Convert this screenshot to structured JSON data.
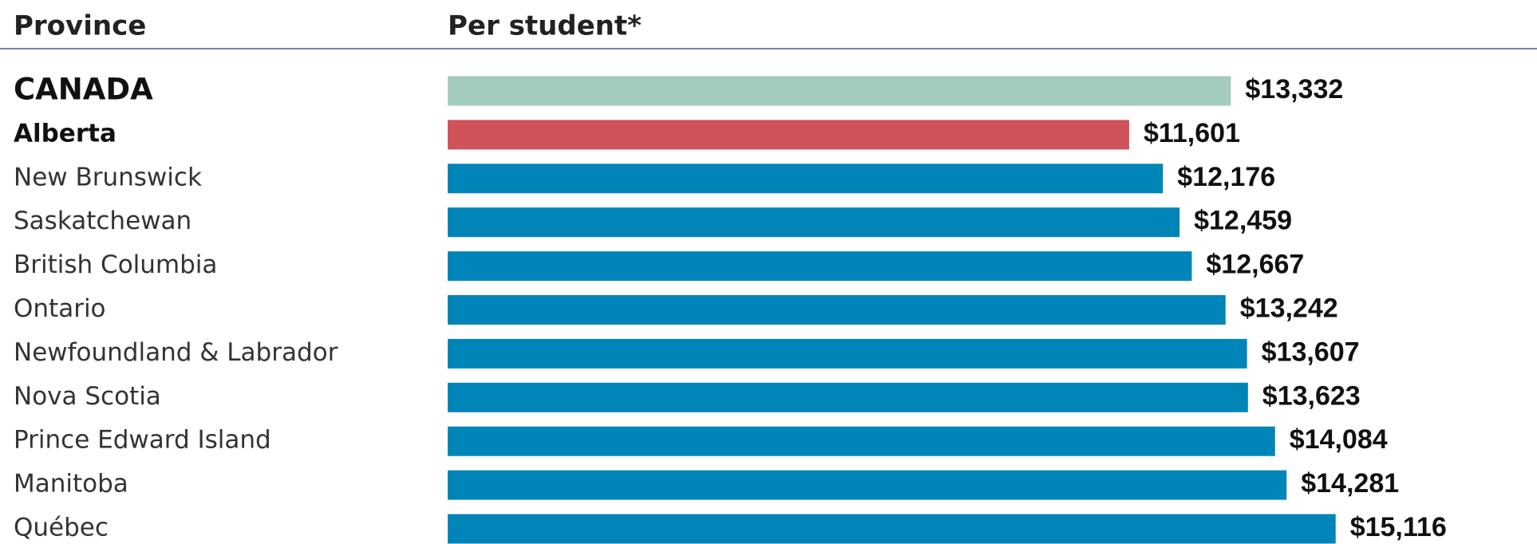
{
  "chart_data": {
    "type": "bar",
    "orientation": "horizontal",
    "category_header": "Province",
    "value_header": "Per student*",
    "categories": [
      "CANADA",
      "Alberta",
      "New Brunswick",
      "Saskatchewan",
      "British Columbia",
      "Ontario",
      "Newfoundland & Labrador",
      "Nova Scotia",
      "Prince Edward Island",
      "Manitoba",
      "Québec"
    ],
    "values": [
      13332,
      11601,
      12176,
      12459,
      12667,
      13242,
      13607,
      13623,
      14084,
      14281,
      15116
    ],
    "value_labels": [
      "$13,332",
      "$11,601",
      "$12,176",
      "$12,459",
      "$12,667",
      "$13,242",
      "$13,607",
      "$13,623",
      "$14,084",
      "$14,281",
      "$15,116"
    ],
    "colors": [
      "#a3cbbf",
      "#d0525a",
      "#0085b8",
      "#0085b8",
      "#0085b8",
      "#0085b8",
      "#0085b8",
      "#0085b8",
      "#0085b8",
      "#0085b8",
      "#0085b8"
    ],
    "xlim": [
      0,
      18000
    ]
  }
}
